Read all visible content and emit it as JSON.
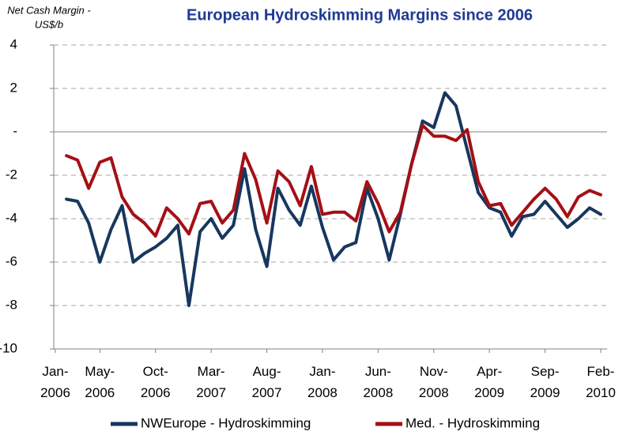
{
  "chart_data": {
    "type": "line",
    "title": "European Hydroskimming Margins since 2006",
    "y_label": [
      "Net Cash Margin -",
      "US$/b"
    ],
    "x": [
      "2006-02",
      "2006-03",
      "2006-04",
      "2006-05",
      "2006-06",
      "2006-07",
      "2006-08",
      "2006-09",
      "2006-10",
      "2006-11",
      "2006-12",
      "2007-01",
      "2007-02",
      "2007-03",
      "2007-04",
      "2007-05",
      "2007-06",
      "2007-07",
      "2007-08",
      "2007-09",
      "2007-10",
      "2007-11",
      "2007-12",
      "2008-01",
      "2008-02",
      "2008-03",
      "2008-04",
      "2008-05",
      "2008-06",
      "2008-07",
      "2008-08",
      "2008-09",
      "2008-10",
      "2008-11",
      "2008-12",
      "2009-01",
      "2009-02",
      "2009-03",
      "2009-04",
      "2009-05",
      "2009-06",
      "2009-07",
      "2009-08",
      "2009-09",
      "2009-10",
      "2009-11",
      "2009-12",
      "2010-01",
      "2010-02"
    ],
    "series": [
      {
        "name": "NWEurope - Hydroskimming",
        "color": "#17375e",
        "values": [
          -3.1,
          -3.2,
          -4.2,
          -6.0,
          -4.5,
          -3.4,
          -6.0,
          -5.6,
          -5.3,
          -4.9,
          -4.3,
          -8.0,
          -4.6,
          -4.0,
          -4.9,
          -4.3,
          -1.7,
          -4.5,
          -6.2,
          -2.6,
          -3.6,
          -4.3,
          -2.5,
          -4.4,
          -5.9,
          -5.3,
          -5.1,
          -2.6,
          -4.0,
          -5.9,
          -3.8,
          -1.5,
          0.5,
          0.2,
          1.8,
          1.2,
          -0.8,
          -2.8,
          -3.5,
          -3.7,
          -4.8,
          -3.9,
          -3.8,
          -3.2,
          -3.8,
          -4.4,
          -4.0,
          -3.5,
          -3.8
        ]
      },
      {
        "name": "Med. - Hydroskimming",
        "color": "#a50f15",
        "values": [
          -1.1,
          -1.3,
          -2.6,
          -1.4,
          -1.2,
          -3.0,
          -3.8,
          -4.2,
          -4.8,
          -3.5,
          -4.0,
          -4.7,
          -3.3,
          -3.2,
          -4.2,
          -3.6,
          -1.0,
          -2.2,
          -4.2,
          -1.8,
          -2.3,
          -3.4,
          -1.6,
          -3.8,
          -3.7,
          -3.7,
          -4.1,
          -2.3,
          -3.3,
          -4.6,
          -3.7,
          -1.5,
          0.3,
          -0.2,
          -0.2,
          -0.4,
          0.1,
          -2.3,
          -3.4,
          -3.3,
          -4.3,
          -3.7,
          -3.1,
          -2.6,
          -3.1,
          -3.9,
          -3.0,
          -2.7,
          -2.9
        ]
      }
    ],
    "xlim": [
      "2006-01",
      "2010-02"
    ],
    "xticks": [
      {
        "value": "2006-01",
        "label": "Jan-2006"
      },
      {
        "value": "2006-05",
        "label": "May-2006"
      },
      {
        "value": "2006-10",
        "label": "Oct-2006"
      },
      {
        "value": "2007-03",
        "label": "Mar-2007"
      },
      {
        "value": "2007-08",
        "label": "Aug-2007"
      },
      {
        "value": "2008-01",
        "label": "Jan-2008"
      },
      {
        "value": "2008-06",
        "label": "Jun-2008"
      },
      {
        "value": "2008-11",
        "label": "Nov-2008"
      },
      {
        "value": "2009-04",
        "label": "Apr-2009"
      },
      {
        "value": "2009-09",
        "label": "Sep-2009"
      },
      {
        "value": "2010-02",
        "label": "Feb-2010"
      }
    ],
    "ylim": [
      -10,
      4
    ],
    "yticks": [
      -10,
      -8,
      -6,
      -4,
      -2,
      {
        "value": 0,
        "label": "-"
      },
      2,
      4
    ],
    "grid": true,
    "legend": "bottom"
  }
}
